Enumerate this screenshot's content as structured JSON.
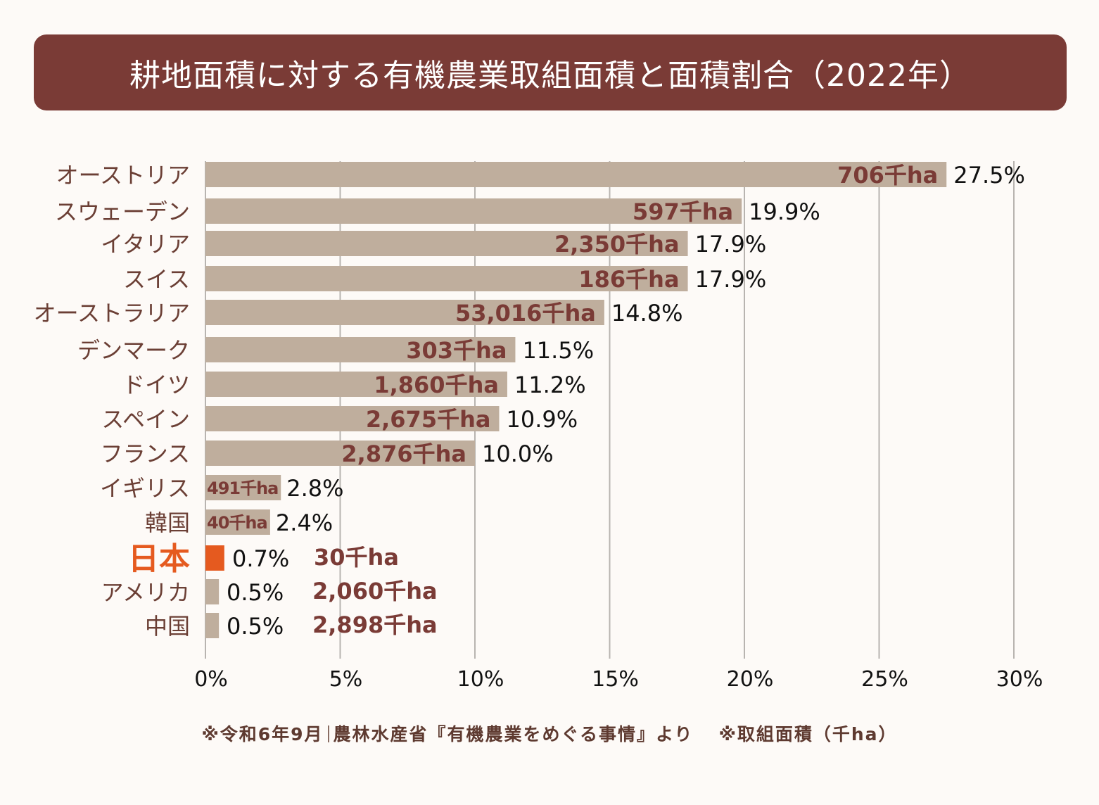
{
  "title": "耕地面積に対する有機農業取組面積と面積割合（2022年）",
  "chart_data": {
    "type": "bar",
    "orientation": "horizontal",
    "title": "耕地面積に対する有機農業取組面積と面積割合（2022年）",
    "xlabel": "",
    "ylabel": "",
    "xlim": [
      0,
      30
    ],
    "x_ticks": [
      "0%",
      "5%",
      "10%",
      "15%",
      "20%",
      "25%",
      "30%"
    ],
    "grid": true,
    "highlight_category": "日本",
    "colors": {
      "bar": "#bfae9d",
      "highlight_bar": "#e55a1f",
      "area_text": "#7a3b36",
      "label_text": "#6b3f35",
      "highlight_text": "#e55a1f",
      "banner": "#7a3b36"
    },
    "categories": [
      "オーストリア",
      "スウェーデン",
      "イタリア",
      "スイス",
      "オーストラリア",
      "デンマーク",
      "ドイツ",
      "スペイン",
      "フランス",
      "イギリス",
      "韓国",
      "日本",
      "アメリカ",
      "中国"
    ],
    "series": [
      {
        "name": "面積割合",
        "unit": "%",
        "values": [
          27.5,
          19.9,
          17.9,
          17.9,
          14.8,
          11.5,
          11.2,
          10.9,
          10.0,
          2.8,
          2.4,
          0.7,
          0.5,
          0.5
        ],
        "labels": [
          "27.5%",
          "19.9%",
          "17.9%",
          "17.9%",
          "14.8%",
          "11.5%",
          "11.2%",
          "10.9%",
          "10.0%",
          "2.8%",
          "2.4%",
          "0.7%",
          "0.5%",
          "0.5%"
        ]
      },
      {
        "name": "取組面積",
        "unit": "千ha",
        "values": [
          706,
          597,
          2350,
          186,
          53016,
          303,
          1860,
          2675,
          2876,
          491,
          40,
          30,
          2060,
          2898
        ],
        "labels": [
          "706千ha",
          "597千ha",
          "2,350千ha",
          "186千ha",
          "53,016千ha",
          "303千ha",
          "1,860千ha",
          "2,675千ha",
          "2,876千ha",
          "491千ha",
          "40千ha",
          "30千ha",
          "2,060千ha",
          "2,898千ha"
        ]
      }
    ]
  },
  "footnote": {
    "source_date": "※令和6年9月",
    "source": "農林水産省『有機農業をめぐる事情』より",
    "unit_note": "※取組面積（千ha）"
  }
}
